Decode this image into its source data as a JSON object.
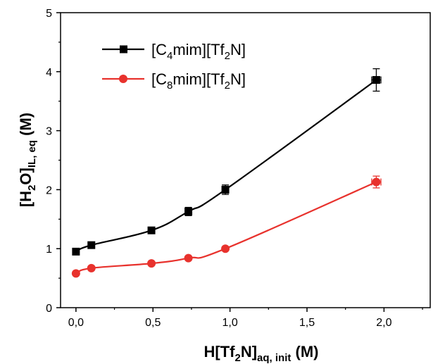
{
  "chart_data": {
    "type": "line",
    "x_axis": {
      "label": {
        "main": "H[Tf",
        "sub1": "2",
        "mid": "N]",
        "sub2": "aq, init",
        "tail": " (M)"
      },
      "lim": [
        -0.1,
        2.3
      ],
      "ticks": [
        0.0,
        0.5,
        1.0,
        1.5,
        2.0
      ],
      "tick_labels": [
        "0,0",
        "0,5",
        "1,0",
        "1,5",
        "2,0"
      ],
      "minor_ticks": [
        0.25,
        0.75,
        1.25,
        1.75,
        2.25
      ]
    },
    "y_axis": {
      "label": {
        "main": "[H",
        "sub1": "2",
        "mid": "O]",
        "sub2": "IL, eq",
        "tail": " (M)"
      },
      "lim": [
        0,
        5
      ],
      "ticks": [
        0,
        1,
        2,
        3,
        4,
        5
      ],
      "tick_labels": [
        "0",
        "1",
        "2",
        "3",
        "4",
        "5"
      ],
      "minor_ticks": [
        0.5,
        1.5,
        2.5,
        3.5,
        4.5
      ]
    },
    "legend_position": "top-left",
    "grid": false,
    "series": [
      {
        "name": {
          "pre": "[C",
          "sub": "4",
          "post": "mim][Tf",
          "sub2": "2",
          "end": "N]"
        },
        "color": "#000000",
        "marker": "square",
        "points": [
          {
            "x": 0.0,
            "y": 0.95
          },
          {
            "x": 0.1,
            "y": 1.06
          },
          {
            "x": 0.49,
            "y": 1.31
          },
          {
            "x": 0.73,
            "y": 1.63,
            "yerr": 0.07
          },
          {
            "x": 0.97,
            "y": 2.0,
            "yerr": 0.08
          },
          {
            "x": 1.95,
            "y": 3.86,
            "yerr": 0.19,
            "xerr": 0.03
          }
        ]
      },
      {
        "name": {
          "pre": "[C",
          "sub": "8",
          "post": "mim][Tf",
          "sub2": "2",
          "end": "N]"
        },
        "color": "#e8322d",
        "marker": "circle",
        "points": [
          {
            "x": 0.0,
            "y": 0.58
          },
          {
            "x": 0.1,
            "y": 0.67
          },
          {
            "x": 0.49,
            "y": 0.75
          },
          {
            "x": 0.73,
            "y": 0.84
          },
          {
            "x": 0.97,
            "y": 1.0
          },
          {
            "x": 1.95,
            "y": 2.13,
            "yerr": 0.1,
            "xerr": 0.03
          }
        ]
      }
    ]
  }
}
